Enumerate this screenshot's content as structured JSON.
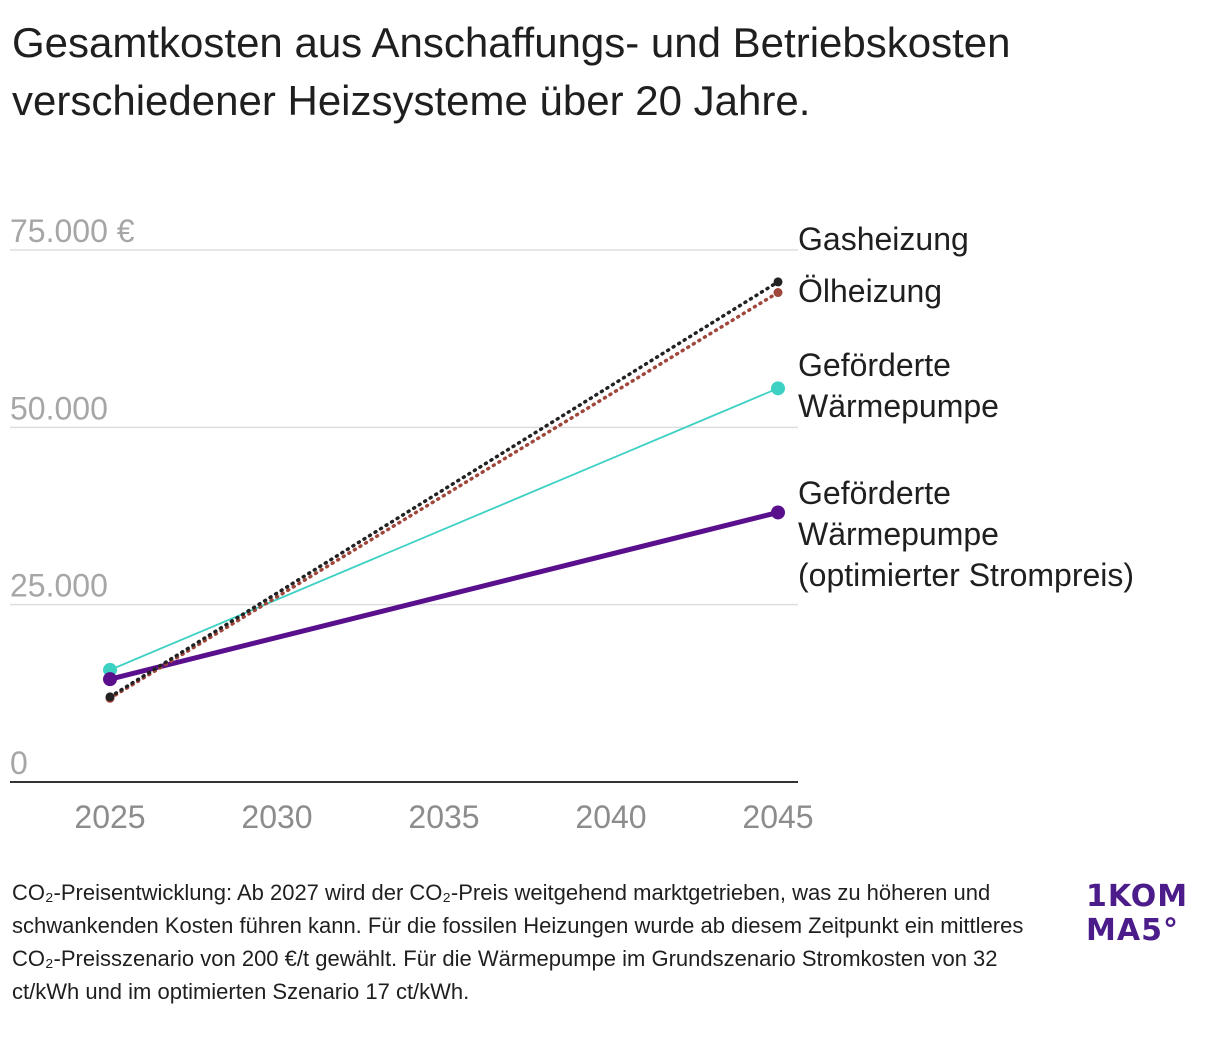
{
  "title": "Gesamtkosten aus Anschaffungs- und Betriebskosten verschiedener Heizsysteme über 20 Jahre.",
  "footnote": "CO₂-Preisentwicklung: Ab 2027 wird der CO₂-Preis weitgehend marktgetrieben, was zu höheren und schwankenden Kosten führen kann. Für die fossilen Heizungen wurde ab diesem Zeitpunkt ein mittleres CO₂-Preisszenario von 200 €/t gewählt. Für die Wärmepumpe im Grundszenario Stromkosten von 32 ct/kWh und im optimierten Szenario 17 ct/kWh.",
  "logo": {
    "line1": "1KOM",
    "line2": "MA5°"
  },
  "chart_data": {
    "type": "line",
    "title": "Gesamtkosten aus Anschaffungs- und Betriebskosten verschiedener Heizsysteme über 20 Jahre.",
    "xlabel": "",
    "ylabel": "",
    "x": [
      2025,
      2045
    ],
    "x_ticks": [
      "2025",
      "2030",
      "2035",
      "2040",
      "2045"
    ],
    "x_tick_values": [
      2025,
      2030,
      2035,
      2040,
      2045
    ],
    "y_ticks": [
      "0",
      "25.000",
      "50.000",
      "75.000 €"
    ],
    "y_tick_values": [
      0,
      25000,
      50000,
      75000
    ],
    "xlim": [
      2025,
      2045
    ],
    "ylim": [
      0,
      75000
    ],
    "grid": true,
    "legend": "direct labels at line ends",
    "series": [
      {
        "name": "Gasheizung",
        "label_lines": [
          "Gasheizung"
        ],
        "values": [
          12000,
          70500
        ],
        "color": "#222222",
        "style": "dotted"
      },
      {
        "name": "Ölheizung",
        "label_lines": [
          "Ölheizung"
        ],
        "values": [
          11800,
          69000
        ],
        "color": "#a0473c",
        "style": "dotted"
      },
      {
        "name": "Geförderte Wärmepumpe",
        "label_lines": [
          "Geförderte",
          "Wärmepumpe"
        ],
        "values": [
          15800,
          55500
        ],
        "color": "#3dd1c4",
        "style": "thin"
      },
      {
        "name": "Geförderte Wärmepumpe (optimierter Strompreis)",
        "label_lines": [
          "Geförderte",
          "Wärmepumpe",
          "(optimierter Strompreis)"
        ],
        "values": [
          14500,
          38000
        ],
        "color": "#5a0f8c",
        "style": "thick"
      }
    ]
  }
}
